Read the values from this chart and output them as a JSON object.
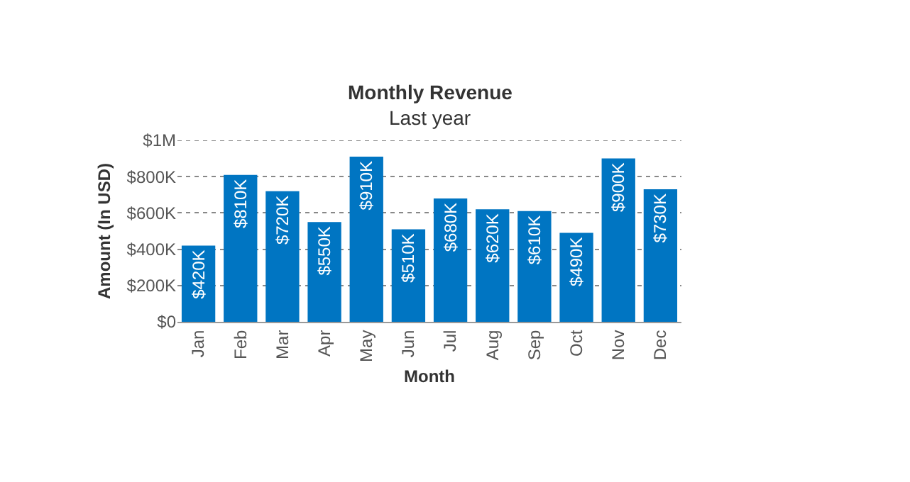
{
  "chart_data": {
    "type": "bar",
    "title": "Monthly Revenue",
    "subtitle": "Last year",
    "xlabel": "Month",
    "ylabel": "Amount (In USD)",
    "categories": [
      "Jan",
      "Feb",
      "Mar",
      "Apr",
      "May",
      "Jun",
      "Jul",
      "Aug",
      "Sep",
      "Oct",
      "Nov",
      "Dec"
    ],
    "values": [
      420000,
      810000,
      720000,
      550000,
      910000,
      510000,
      680000,
      620000,
      610000,
      490000,
      900000,
      730000
    ],
    "value_labels": [
      "$420K",
      "$810K",
      "$720K",
      "$550K",
      "$910K",
      "$510K",
      "$680K",
      "$620K",
      "$610K",
      "$490K",
      "$900K",
      "$730K"
    ],
    "color": "#0075c2",
    "ylim": [
      0,
      1000000
    ],
    "yticks": [
      {
        "value": 0,
        "label": "$0"
      },
      {
        "value": 200000,
        "label": "$200K"
      },
      {
        "value": 400000,
        "label": "$400K"
      },
      {
        "value": 600000,
        "label": "$600K"
      },
      {
        "value": 800000,
        "label": "$800K"
      },
      {
        "value": 1000000,
        "label": "$1M"
      }
    ],
    "grid": "y"
  }
}
